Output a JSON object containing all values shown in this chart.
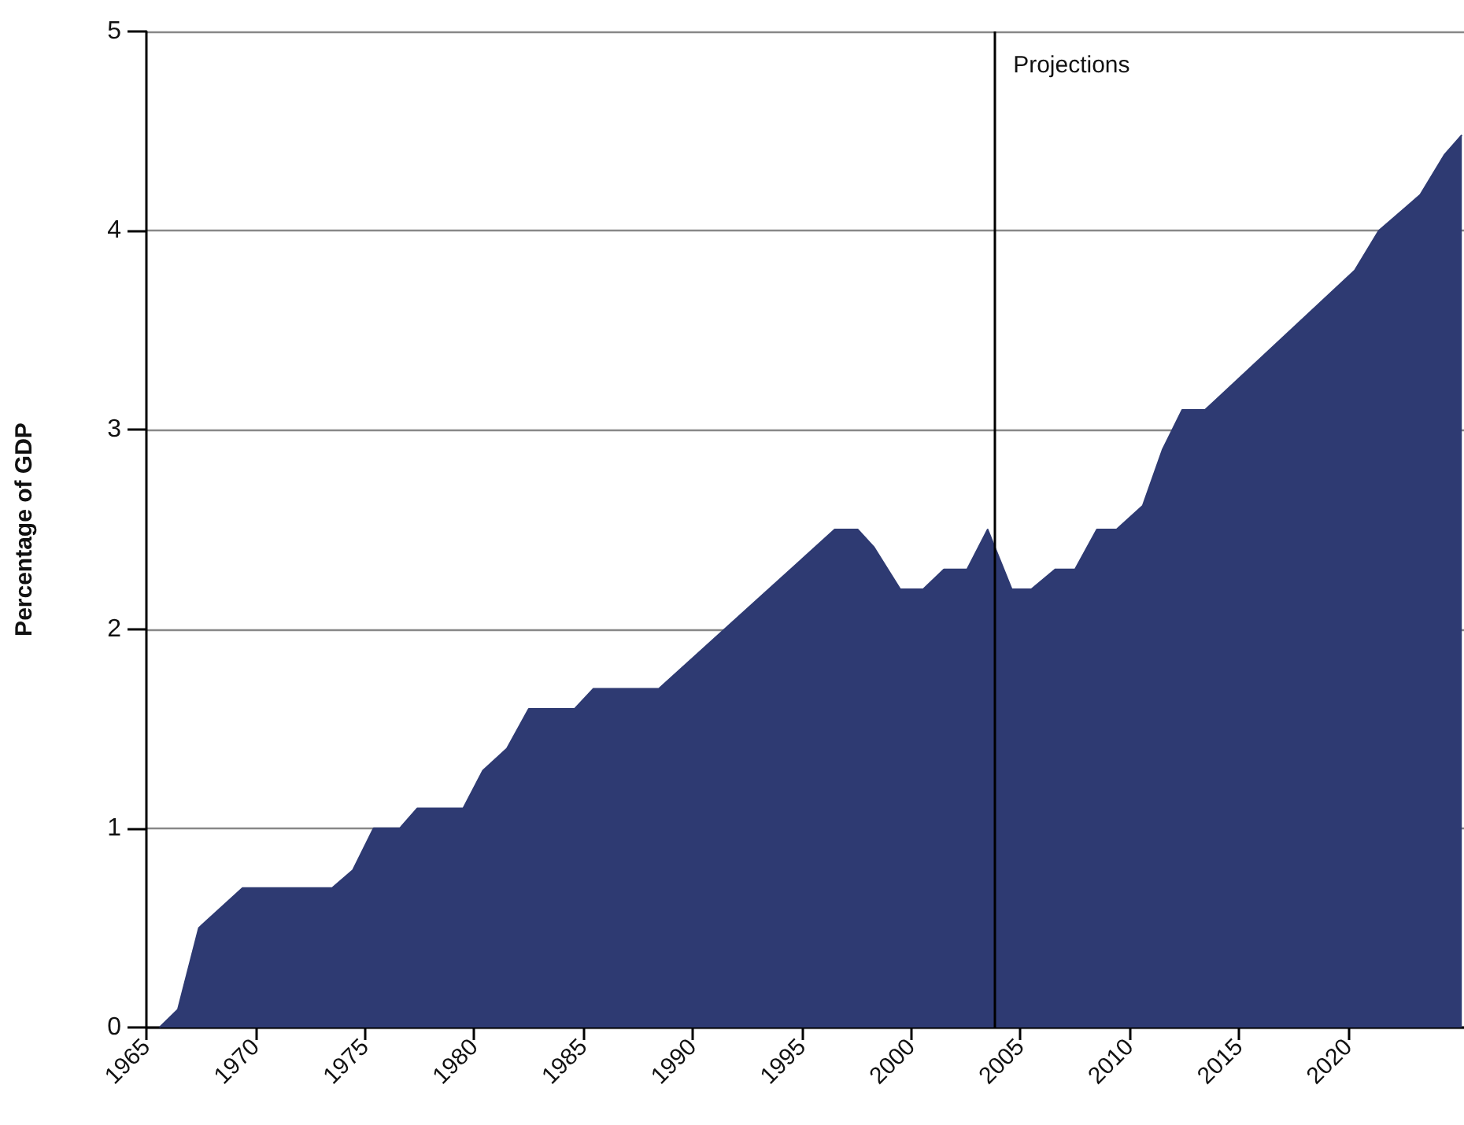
{
  "chart_data": {
    "type": "area",
    "ylabel": "Percentage of GDP",
    "x": [
      1965.6,
      1966.44,
      1967.4,
      1969.4,
      1973.5,
      1974.45,
      1975.4,
      1976.6,
      1977.4,
      1979.5,
      1980.4,
      1981.5,
      1982.5,
      1984.6,
      1985.45,
      1988.45,
      1996.5,
      1997.55,
      1998.3,
      1999.5,
      2000.55,
      2001.5,
      2002.56,
      2003.5,
      2004.6,
      2005.5,
      2006.6,
      2007.5,
      2008.5,
      2009.4,
      2010.6,
      2011.5,
      2012.4,
      2013.45,
      2020.3,
      2021.4,
      2023.3,
      2024.4,
      2025.2
    ],
    "series": [
      {
        "color": "#2e3a72",
        "values": [
          0,
          0.09,
          0.5,
          0.7,
          0.7,
          0.79,
          1.0,
          1.0,
          1.1,
          1.1,
          1.29,
          1.4,
          1.6,
          1.6,
          1.7,
          1.7,
          2.5,
          2.5,
          2.41,
          2.2,
          2.2,
          2.3,
          2.3,
          2.5,
          2.2,
          2.2,
          2.3,
          2.3,
          2.5,
          2.5,
          2.62,
          2.9,
          3.1,
          3.1,
          3.8,
          4.0,
          4.18,
          4.38,
          4.48
        ]
      }
    ],
    "xlim": [
      1965,
      2025.3
    ],
    "xticks": [
      1965,
      1970,
      1975,
      1980,
      1985,
      1990,
      1995,
      2000,
      2005,
      2010,
      2015,
      2020
    ],
    "ylim": [
      0,
      5
    ],
    "yticks": [
      0,
      1,
      2,
      3,
      4,
      5
    ],
    "grid": "y",
    "marker": "none",
    "ref_lines": [
      {
        "axis": "x",
        "value": 2003.8,
        "label": "Projections",
        "color": "#000000"
      }
    ]
  }
}
